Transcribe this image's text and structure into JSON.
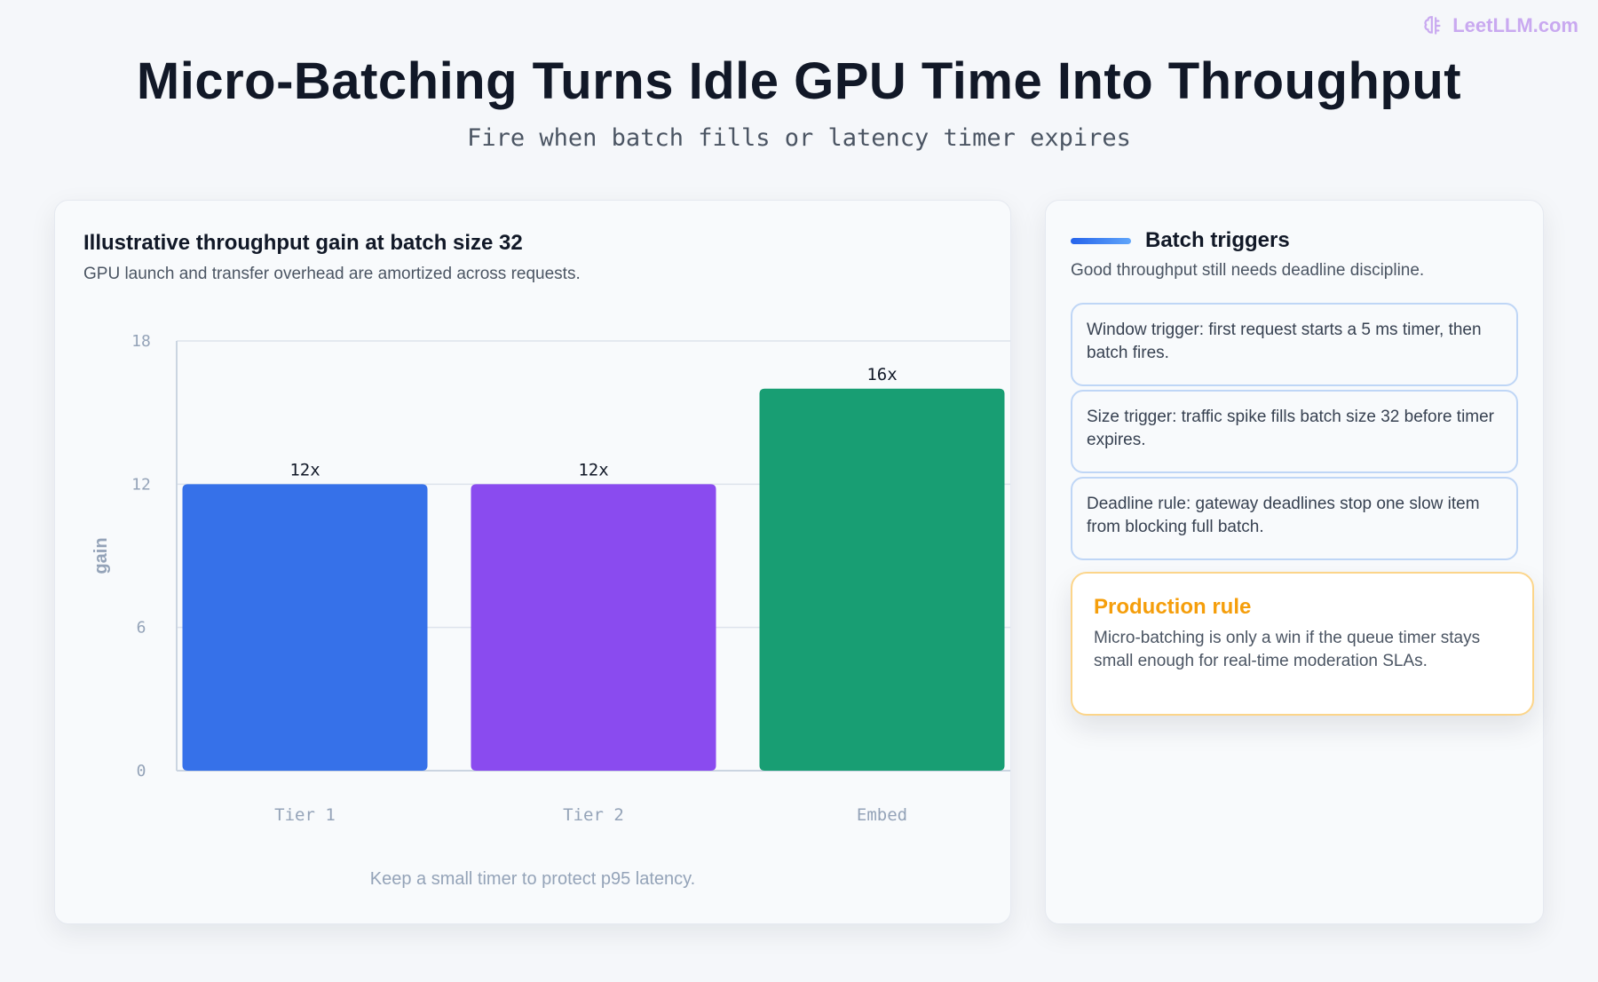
{
  "brand": {
    "text": "LeetLLM.com",
    "icon": "brain-icon"
  },
  "header": {
    "title": "Micro-Batching Turns Idle GPU Time Into Throughput",
    "subtitle": "Fire when batch fills or latency timer expires"
  },
  "chart_card": {
    "title": "Illustrative throughput gain at batch size 32",
    "subtitle": "GPU launch and transfer overhead are amortized across requests.",
    "footer": "Keep a small timer to protect p95 latency."
  },
  "chart_data": {
    "type": "bar",
    "categories": [
      "Tier 1",
      "Tier 2",
      "Embed"
    ],
    "values": [
      12,
      12,
      16
    ],
    "value_labels": [
      "12x",
      "12x",
      "16x"
    ],
    "colors": [
      "#3671e9",
      "#8a4bef",
      "#189e73"
    ],
    "ylabel": "gain",
    "ylim": [
      0,
      18
    ],
    "yticks": [
      0,
      6,
      12,
      18
    ],
    "grid": true
  },
  "side": {
    "title": "Batch triggers",
    "subtitle": "Good throughput still needs deadline discipline.",
    "triggers": [
      "Window trigger: first request starts a 5 ms timer, then batch fires.",
      "Size trigger: traffic spike fills batch size 32 before timer expires.",
      "Deadline rule: gateway deadlines stop one slow item from blocking full batch."
    ],
    "production": {
      "title": "Production rule",
      "text": "Micro-batching is only a win if the queue timer stays small enough for real-time moderation SLAs."
    }
  },
  "colors": {
    "accent": "#2563eb",
    "warning": "#f59e0b",
    "brand": "#c9a9f0"
  }
}
